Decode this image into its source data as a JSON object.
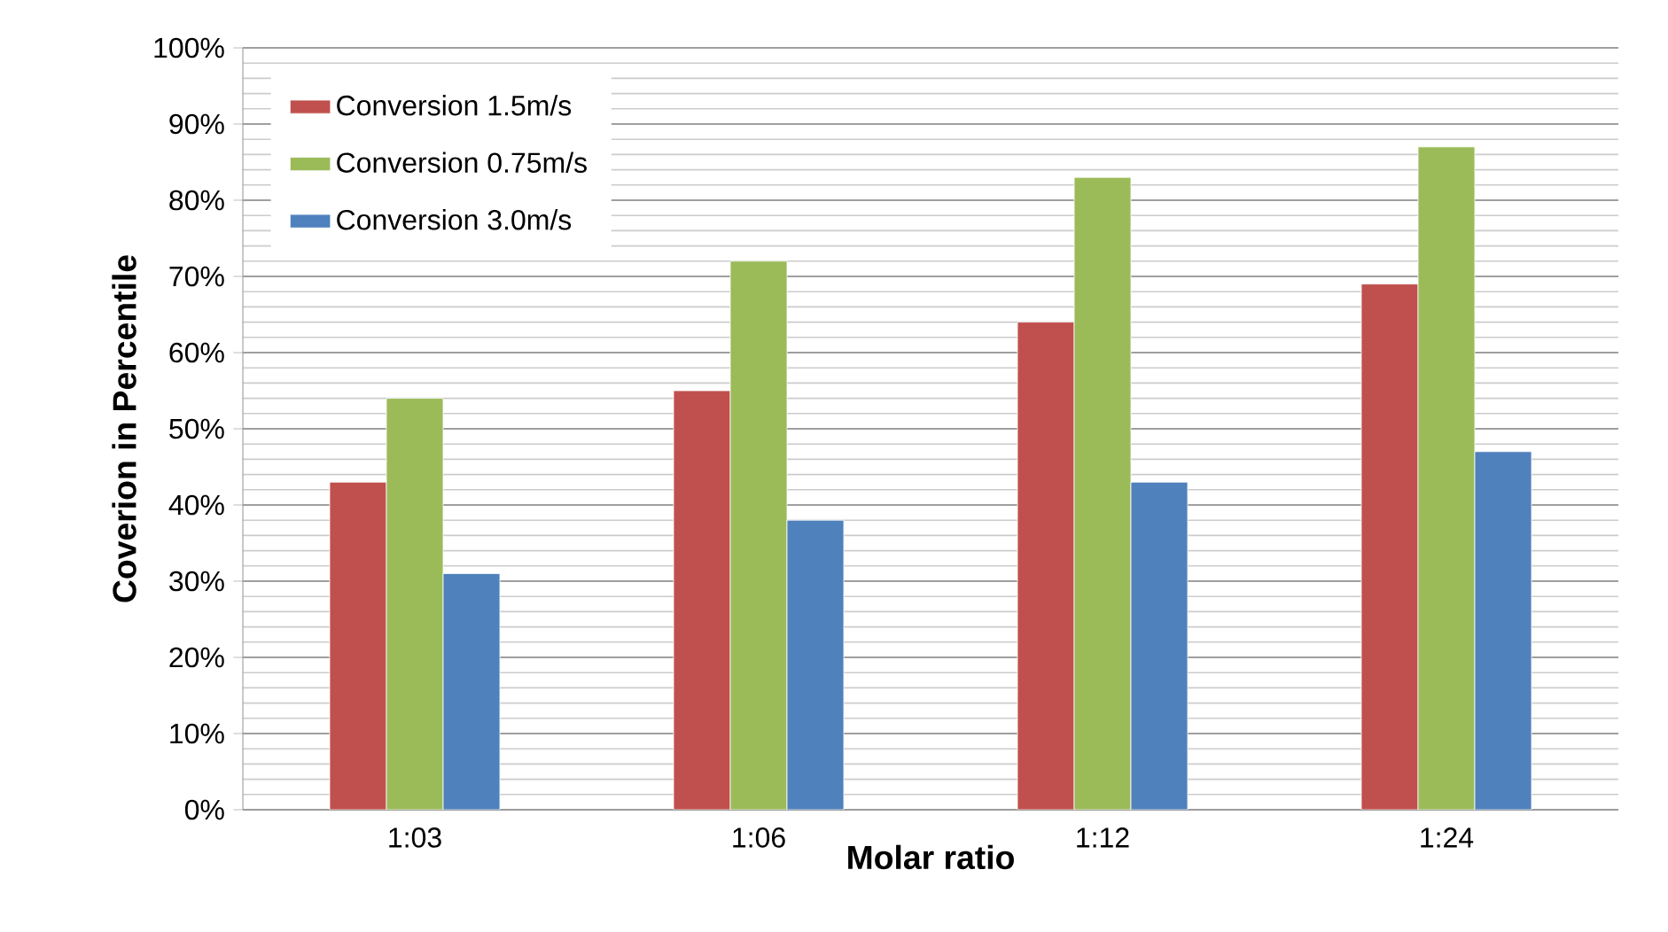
{
  "chart_data": {
    "type": "bar",
    "xlabel": "Molar ratio",
    "ylabel": "Coverion  in Percentile",
    "categories": [
      "1:03",
      "1:06",
      "1:12",
      "1:24"
    ],
    "series": [
      {
        "name": "Conversion 1.5m/s",
        "color": "#c0504d",
        "values": [
          43,
          55,
          64,
          69
        ]
      },
      {
        "name": "Conversion 0.75m/s",
        "color": "#9bbb59",
        "values": [
          54,
          72,
          83,
          87
        ]
      },
      {
        "name": "Conversion 3.0m/s",
        "color": "#4f81bd",
        "values": [
          31,
          38,
          43,
          47
        ]
      }
    ],
    "ylim": [
      0,
      100
    ],
    "yticks": [
      {
        "value": 0,
        "label": "0%"
      },
      {
        "value": 10,
        "label": "10%"
      },
      {
        "value": 20,
        "label": "20%"
      },
      {
        "value": 30,
        "label": "30%"
      },
      {
        "value": 40,
        "label": "40%"
      },
      {
        "value": 50,
        "label": "50%"
      },
      {
        "value": 60,
        "label": "60%"
      },
      {
        "value": 70,
        "label": "70%"
      },
      {
        "value": 80,
        "label": "80%"
      },
      {
        "value": 90,
        "label": "90%"
      },
      {
        "value": 100,
        "label": "100%"
      }
    ],
    "grid": "y",
    "legend": "top left"
  }
}
